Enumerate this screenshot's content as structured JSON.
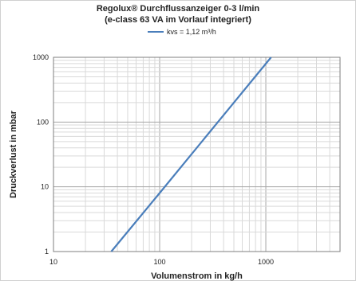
{
  "chart_data": {
    "type": "line",
    "title": "Regolux® Durchflussanzeiger 0-3 l/min",
    "subtitle": "(e-class 63 VA im Vorlauf integriert)",
    "xlabel": "Volumenstrom in kg/h",
    "ylabel": "Druckverlust in mbar",
    "xscale": "log",
    "yscale": "log",
    "xlim": [
      10,
      5000
    ],
    "ylim": [
      1,
      1000
    ],
    "xticks": [
      "10",
      "100",
      "1000"
    ],
    "yticks": [
      "1",
      "10",
      "100",
      "1000"
    ],
    "grid": true,
    "legend_position": "top",
    "series": [
      {
        "name": "kvs = 1,12 m³/h",
        "color": "#4a7ebb",
        "x": [
          35,
          100,
          1120
        ],
        "y": [
          1,
          8,
          1000
        ]
      }
    ]
  }
}
